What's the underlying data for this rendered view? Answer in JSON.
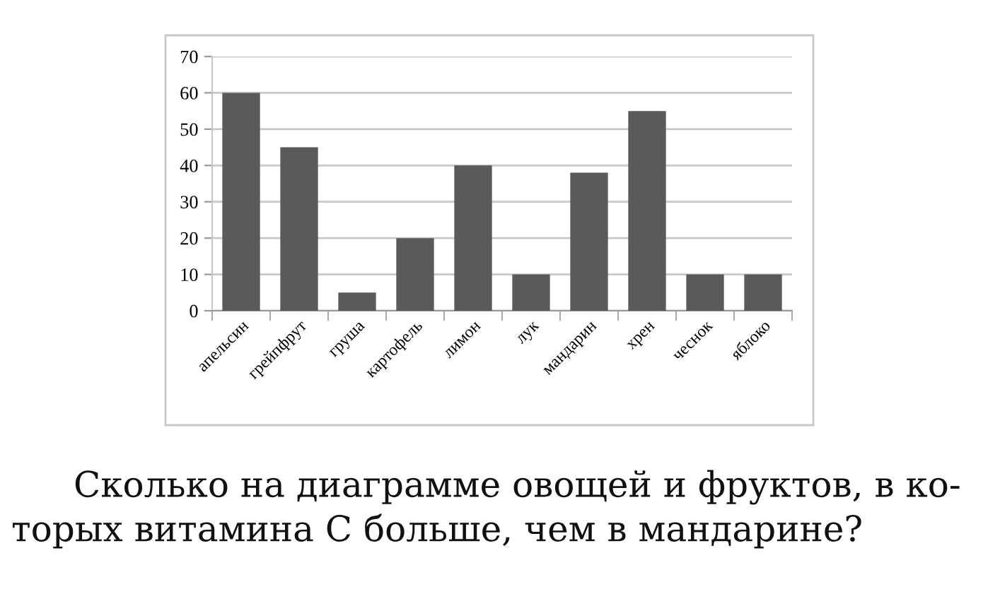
{
  "chart_data": {
    "type": "bar",
    "categories": [
      "апельсин",
      "грейпфрут",
      "груша",
      "картофель",
      "лимон",
      "лук",
      "мандарин",
      "хрен",
      "чеснок",
      "яблоко"
    ],
    "values": [
      60,
      45,
      5,
      20,
      40,
      10,
      38,
      55,
      10,
      10
    ],
    "color": "#5a5a5a",
    "ylim": [
      0,
      70
    ],
    "yticks": [
      0,
      10,
      20,
      30,
      40,
      50,
      60,
      70
    ],
    "grid": "y",
    "annotations": [
      "Сколько на диаграмме овощей и фруктов, в ко-\nторых витамина С больше, чем в мандарине?"
    ]
  }
}
